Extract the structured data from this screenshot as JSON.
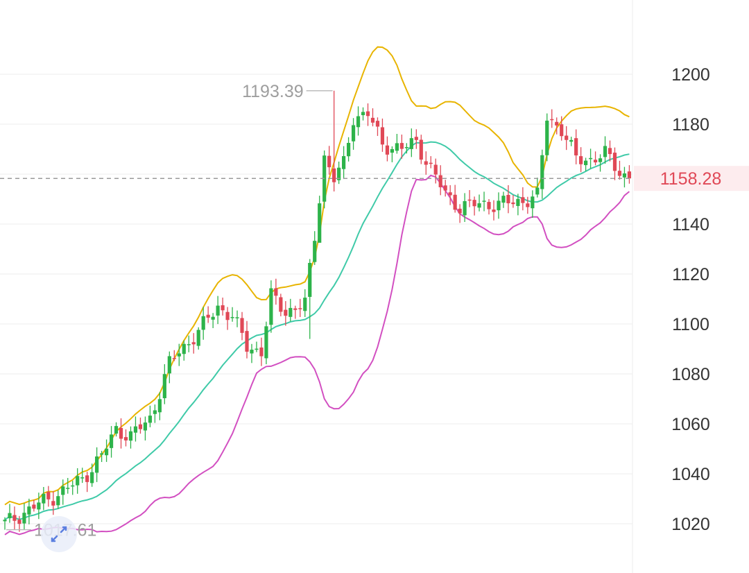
{
  "chart_data": {
    "type": "candlestick",
    "title": "",
    "xlabel": "",
    "ylabel": "",
    "ylim": [
      1012,
      1224
    ],
    "y_ticks": [
      "1200",
      "1180",
      "1160",
      "1140",
      "1120",
      "1100",
      "1080",
      "1060",
      "1040",
      "1020"
    ],
    "grid": true,
    "colors": {
      "up": "#2db34a",
      "down": "#e04856",
      "upper_band": "#e8b400",
      "middle_band": "#3fcaa8",
      "lower_band": "#d24fc1",
      "current_price": "#e04856"
    },
    "current_price": {
      "value": 1158.28,
      "label": "1158.28"
    },
    "annotations": [
      {
        "label": "1193.39",
        "value": 1193.39,
        "candle_index": 68
      },
      {
        "label": "1017.61",
        "value": 1017.61,
        "candle_index": 0
      }
    ],
    "candles": []
  }
}
